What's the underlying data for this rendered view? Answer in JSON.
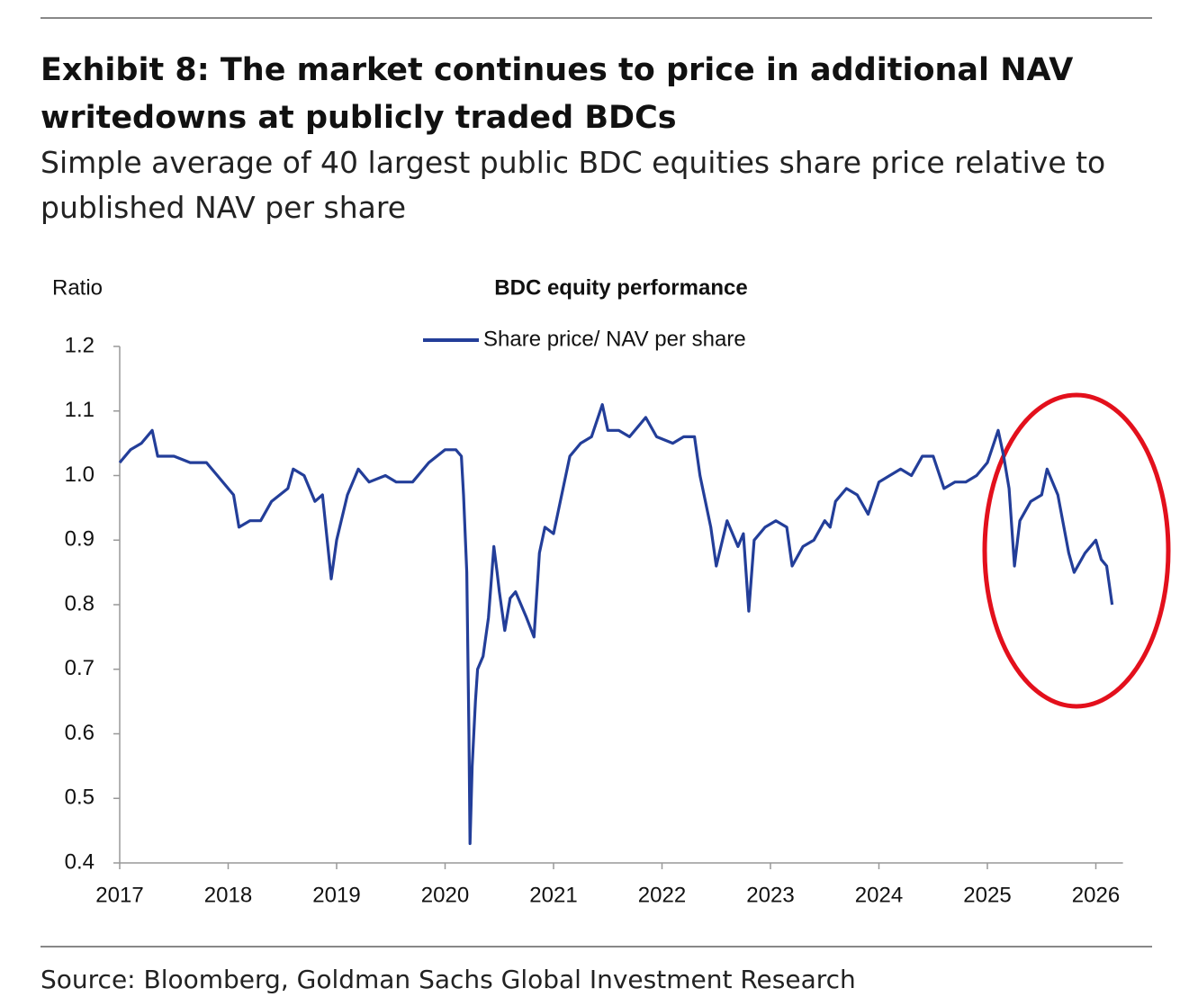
{
  "header": {
    "title": "Exhibit 8: The market continues to price in additional NAV writedowns at publicly traded BDCs",
    "subtitle": "Simple average of 40 largest public BDC equities share price relative to published NAV per share"
  },
  "chart_data": {
    "type": "line",
    "title": "BDC equity performance",
    "y_label": "Ratio",
    "x": [
      2017.0,
      2017.1,
      2017.2,
      2017.3,
      2017.35,
      2017.5,
      2017.65,
      2017.8,
      2017.9,
      2018.05,
      2018.1,
      2018.2,
      2018.3,
      2018.4,
      2018.55,
      2018.6,
      2018.7,
      2018.8,
      2018.87,
      2018.95,
      2019.0,
      2019.1,
      2019.2,
      2019.3,
      2019.45,
      2019.55,
      2019.7,
      2019.85,
      2020.0,
      2020.1,
      2020.15,
      2020.17,
      2020.2,
      2020.22,
      2020.23,
      2020.25,
      2020.28,
      2020.3,
      2020.35,
      2020.4,
      2020.45,
      2020.48,
      2020.5,
      2020.55,
      2020.6,
      2020.65,
      2020.75,
      2020.82,
      2020.87,
      2020.92,
      2021.0,
      2021.05,
      2021.15,
      2021.25,
      2021.35,
      2021.45,
      2021.5,
      2021.6,
      2021.7,
      2021.8,
      2021.85,
      2021.95,
      2022.1,
      2022.2,
      2022.3,
      2022.35,
      2022.45,
      2022.5,
      2022.6,
      2022.7,
      2022.75,
      2022.8,
      2022.85,
      2022.95,
      2023.05,
      2023.15,
      2023.2,
      2023.3,
      2023.4,
      2023.5,
      2023.55,
      2023.6,
      2023.7,
      2023.8,
      2023.9,
      2024.0,
      2024.1,
      2024.2,
      2024.3,
      2024.4,
      2024.5,
      2024.6,
      2024.7,
      2024.8,
      2024.9,
      2025.0,
      2025.1,
      2025.15,
      2025.2,
      2025.25,
      2025.3,
      2025.4,
      2025.5,
      2025.55,
      2025.65,
      2025.75,
      2025.8,
      2025.9,
      2026.0,
      2026.05,
      2026.1,
      2026.15
    ],
    "series": [
      {
        "name": "Share price/ NAV per share",
        "color": "#233e99",
        "values": [
          1.02,
          1.04,
          1.05,
          1.07,
          1.03,
          1.03,
          1.02,
          1.02,
          1.0,
          0.97,
          0.92,
          0.93,
          0.93,
          0.96,
          0.98,
          1.01,
          1.0,
          0.96,
          0.97,
          0.84,
          0.9,
          0.97,
          1.01,
          0.99,
          1.0,
          0.99,
          0.99,
          1.02,
          1.04,
          1.04,
          1.03,
          0.97,
          0.85,
          0.6,
          0.43,
          0.55,
          0.65,
          0.7,
          0.72,
          0.78,
          0.89,
          0.85,
          0.82,
          0.76,
          0.81,
          0.82,
          0.78,
          0.75,
          0.88,
          0.92,
          0.91,
          0.95,
          1.03,
          1.05,
          1.06,
          1.11,
          1.07,
          1.07,
          1.06,
          1.08,
          1.09,
          1.06,
          1.05,
          1.06,
          1.06,
          1.0,
          0.92,
          0.86,
          0.93,
          0.89,
          0.91,
          0.79,
          0.9,
          0.92,
          0.93,
          0.92,
          0.86,
          0.89,
          0.9,
          0.93,
          0.92,
          0.96,
          0.98,
          0.97,
          0.94,
          0.99,
          1.0,
          1.01,
          1.0,
          1.03,
          1.03,
          0.98,
          0.99,
          0.99,
          1.0,
          1.02,
          1.07,
          1.03,
          0.98,
          0.86,
          0.93,
          0.96,
          0.97,
          1.01,
          0.97,
          0.88,
          0.85,
          0.88,
          0.9,
          0.87,
          0.86,
          0.8
        ]
      }
    ],
    "xlim": [
      2017,
      2026.25
    ],
    "xticks": [
      2017,
      2018,
      2019,
      2020,
      2021,
      2022,
      2023,
      2024,
      2025,
      2026
    ],
    "ylim": [
      0.4,
      1.2
    ],
    "yticks": [
      0.4,
      0.5,
      0.6,
      0.7,
      0.8,
      0.9,
      {
        "value": 1,
        "label": "1.0"
      },
      1.1,
      1.2
    ],
    "grid": false,
    "legend": "top"
  },
  "footer": {
    "source": "Source: Bloomberg, Goldman Sachs Global Investment Research"
  }
}
